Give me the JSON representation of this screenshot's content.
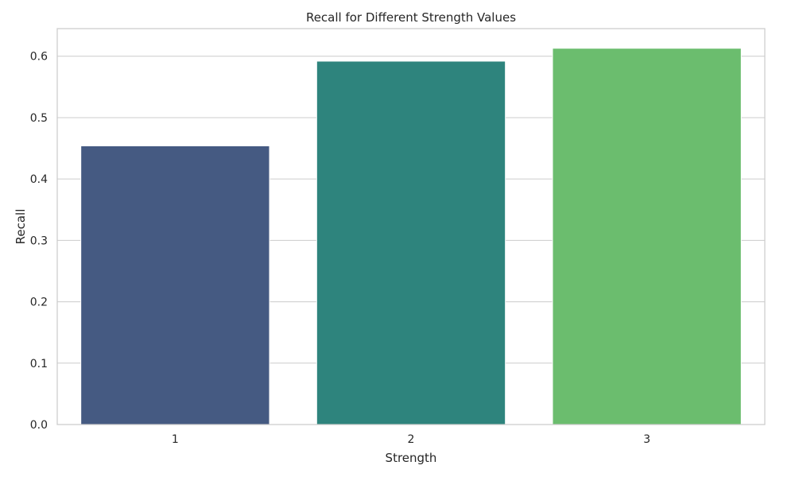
{
  "chart_data": {
    "type": "bar",
    "title": "Recall for Different Strength Values",
    "xlabel": "Strength",
    "ylabel": "Recall",
    "categories": [
      "1",
      "2",
      "3"
    ],
    "values": [
      0.454,
      0.592,
      0.613
    ],
    "colors": [
      "#455a82",
      "#2e847d",
      "#6bbd6e"
    ],
    "ylim": [
      0,
      0.645
    ],
    "yticks": [
      0.0,
      0.1,
      0.2,
      0.3,
      0.4,
      0.5,
      0.6
    ],
    "ytick_labels": [
      "0.0",
      "0.1",
      "0.2",
      "0.3",
      "0.4",
      "0.5",
      "0.6"
    ],
    "grid": "horizontal",
    "legend": "none"
  }
}
